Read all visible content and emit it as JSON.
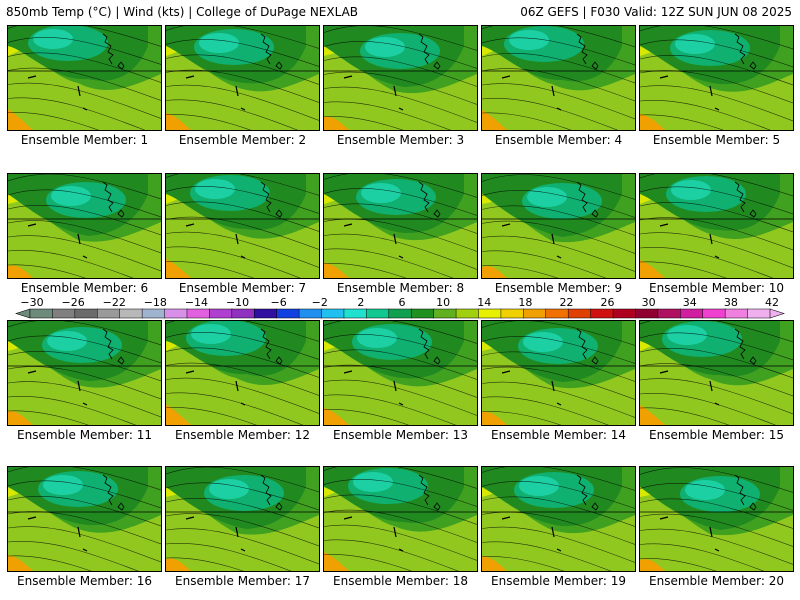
{
  "header": {
    "left_title": "850mb Temp (°C) | Wind (kts) | College of DuPage NEXLAB",
    "right_title": "06Z GEFS | F030 Valid: 12Z SUN JUN 08 2025"
  },
  "members": [
    {
      "label": "Ensemble Member: 1"
    },
    {
      "label": "Ensemble Member: 2"
    },
    {
      "label": "Ensemble Member: 3"
    },
    {
      "label": "Ensemble Member: 4"
    },
    {
      "label": "Ensemble Member: 5"
    },
    {
      "label": "Ensemble Member: 6"
    },
    {
      "label": "Ensemble Member: 7"
    },
    {
      "label": "Ensemble Member: 8"
    },
    {
      "label": "Ensemble Member: 9"
    },
    {
      "label": "Ensemble Member: 10"
    },
    {
      "label": "Ensemble Member: 11"
    },
    {
      "label": "Ensemble Member: 12"
    },
    {
      "label": "Ensemble Member: 13"
    },
    {
      "label": "Ensemble Member: 14"
    },
    {
      "label": "Ensemble Member: 15"
    },
    {
      "label": "Ensemble Member: 16"
    },
    {
      "label": "Ensemble Member: 17"
    },
    {
      "label": "Ensemble Member: 18"
    },
    {
      "label": "Ensemble Member: 19"
    },
    {
      "label": "Ensemble Member: 20"
    }
  ],
  "colorbar": {
    "tick_labels": [
      "−30",
      "−26",
      "−22",
      "−18",
      "−14",
      "−10",
      "−6",
      "−2",
      "2",
      "6",
      "10",
      "14",
      "18",
      "22",
      "26",
      "30",
      "34",
      "38",
      "42"
    ],
    "colors": [
      "#6e8a7a",
      "#808080",
      "#6b6b6b",
      "#9a9a9a",
      "#b8b8b8",
      "#a0b4d0",
      "#d890e8",
      "#e060e0",
      "#b040d0",
      "#9030c0",
      "#3010a0",
      "#1040e0",
      "#2090f0",
      "#20c0f0",
      "#20e0d0",
      "#10c890",
      "#10a050",
      "#209020",
      "#60b020",
      "#a0d010",
      "#e8f000",
      "#f0d000",
      "#f0a000",
      "#f07000",
      "#e04000",
      "#d01010",
      "#b00020",
      "#900030",
      "#b01060",
      "#d020a0",
      "#f040d0",
      "#f080e0",
      "#f0b0f0"
    ]
  },
  "map_colors": {
    "band_light": "#d8e800",
    "band_mid": "#90c820",
    "band_green": "#40a020",
    "band_dark": "#208a20",
    "band_teal": "#10b070",
    "band_cyan": "#20d8b0",
    "hot_orange": "#f0a000",
    "contour": "#000000"
  }
}
